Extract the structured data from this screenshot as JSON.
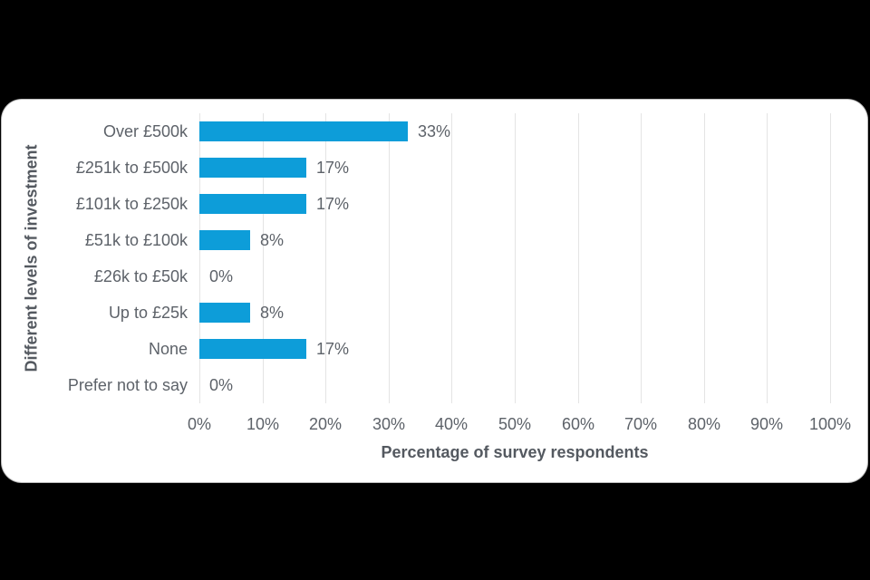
{
  "chart_data": {
    "type": "bar",
    "orientation": "horizontal",
    "categories": [
      "Over £500k",
      "£251k to £500k",
      "£101k to £250k",
      "£51k to £100k",
      "£26k to £50k",
      "Up to £25k",
      "None",
      "Prefer not to say"
    ],
    "values": [
      33,
      17,
      17,
      8,
      0,
      8,
      17,
      0
    ],
    "value_labels": [
      "33%",
      "17%",
      "17%",
      "8%",
      "0%",
      "8%",
      "17%",
      "0%"
    ],
    "xlabel": "Percentage of survey respondents",
    "ylabel": "Different levels of investment",
    "xlim": [
      0,
      100
    ],
    "x_ticks": [
      "0%",
      "10%",
      "20%",
      "30%",
      "40%",
      "50%",
      "60%",
      "70%",
      "80%",
      "90%",
      "100%"
    ],
    "grid": "vertical-only",
    "legend": "none",
    "colors": {
      "bar": "#0d9dd9",
      "gridline": "#e4e4e4",
      "label_text": "#5d6269",
      "title_text": "#545960",
      "card_background": "#ffffff",
      "page_background": "#000000"
    }
  }
}
